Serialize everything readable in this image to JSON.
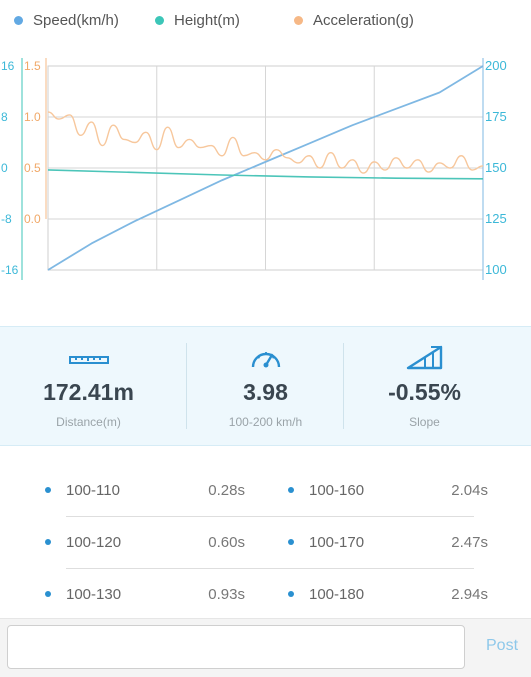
{
  "legend": [
    {
      "label": "Speed(km/h)",
      "color": "#62a9e3"
    },
    {
      "label": "Height(m)",
      "color": "#3cc6b8"
    },
    {
      "label": "Acceleration(g)",
      "color": "#f6b886"
    }
  ],
  "chart_data": {
    "type": "line",
    "axes": {
      "height_ticks": [
        "16",
        "8",
        "0",
        "-8",
        "-16"
      ],
      "acceleration_ticks": [
        "1.5",
        "1.0",
        "0.5",
        "0.0"
      ],
      "speed_ticks": [
        "200",
        "175",
        "150",
        "125",
        "100"
      ],
      "speed_range": [
        100,
        200
      ],
      "height_range": [
        -16,
        16
      ],
      "acceleration_range": [
        0,
        1.5
      ]
    },
    "grid": true,
    "series": [
      {
        "name": "Speed(km/h)",
        "color": "#7fb8e3",
        "x": [
          0,
          0.1,
          0.2,
          0.3,
          0.4,
          0.5,
          0.6,
          0.7,
          0.8,
          0.9,
          1.0
        ],
        "values": [
          100,
          113,
          124,
          134,
          144,
          153,
          162,
          171,
          179,
          187,
          200
        ]
      },
      {
        "name": "Height(m)",
        "color": "#4cc5b9",
        "x": [
          0,
          0.2,
          0.4,
          0.6,
          0.8,
          1.0
        ],
        "values": [
          -0.3,
          -0.7,
          -1.1,
          -1.4,
          -1.6,
          -1.7
        ]
      },
      {
        "name": "Acceleration(g)",
        "color": "#f7c79c",
        "x": [
          0,
          0.025,
          0.05,
          0.075,
          0.1,
          0.125,
          0.15,
          0.175,
          0.2,
          0.225,
          0.25,
          0.275,
          0.3,
          0.325,
          0.35,
          0.375,
          0.4,
          0.425,
          0.45,
          0.475,
          0.5,
          0.525,
          0.55,
          0.575,
          0.6,
          0.625,
          0.65,
          0.675,
          0.7,
          0.725,
          0.75,
          0.775,
          0.8,
          0.825,
          0.85,
          0.875,
          0.9,
          0.925,
          0.95,
          0.975,
          1.0
        ],
        "values": [
          1.05,
          0.98,
          1.02,
          0.82,
          0.95,
          0.72,
          0.92,
          0.78,
          0.75,
          0.85,
          0.68,
          0.9,
          0.7,
          0.78,
          0.7,
          0.72,
          0.62,
          0.8,
          0.62,
          0.65,
          0.58,
          0.68,
          0.6,
          0.55,
          0.62,
          0.5,
          0.65,
          0.5,
          0.58,
          0.45,
          0.56,
          0.48,
          0.6,
          0.5,
          0.58,
          0.46,
          0.55,
          0.5,
          0.62,
          0.48,
          0.52
        ]
      }
    ]
  },
  "stats": [
    {
      "icon": "ruler-icon",
      "value": "172.41m",
      "label": "Distance(m)"
    },
    {
      "icon": "speedometer-icon",
      "value": "3.98",
      "label": "100-200 km/h"
    },
    {
      "icon": "slope-icon",
      "value": "-0.55%",
      "label": "Slope"
    }
  ],
  "splits": [
    {
      "left": {
        "range": "100-110",
        "time": "0.28s"
      },
      "right": {
        "range": "100-160",
        "time": "2.04s"
      }
    },
    {
      "left": {
        "range": "100-120",
        "time": "0.60s"
      },
      "right": {
        "range": "100-170",
        "time": "2.47s"
      }
    },
    {
      "left": {
        "range": "100-130",
        "time": "0.93s"
      },
      "right": {
        "range": "100-180",
        "time": "2.94s"
      }
    }
  ],
  "footer": {
    "comment_placeholder": "",
    "post_label": "Post"
  }
}
